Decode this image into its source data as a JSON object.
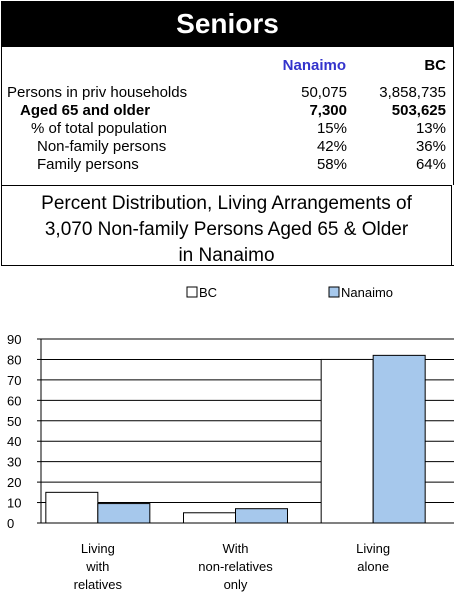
{
  "header": {
    "title": "Seniors"
  },
  "stats": {
    "columns": [
      "Nanaimo",
      "BC"
    ],
    "rows": [
      {
        "label": "Persons in priv households",
        "nanaimo": "50,075",
        "bc": "3,858,735",
        "bold": false,
        "indent": 0
      },
      {
        "label": "Aged 65 and older",
        "nanaimo": "7,300",
        "bc": "503,625",
        "bold": true,
        "indent": 1
      },
      {
        "label": "% of total population",
        "nanaimo": "15%",
        "bc": "13%",
        "bold": false,
        "indent": 2
      },
      {
        "label": "Non-family persons",
        "nanaimo": "42%",
        "bc": "36%",
        "bold": false,
        "indent": 3
      },
      {
        "label": "Family persons",
        "nanaimo": "58%",
        "bc": "64%",
        "bold": false,
        "indent": 3
      }
    ]
  },
  "chart_title_lines": [
    "Percent Distribution, Living Arrangements of",
    "3,070 Non-family Persons Aged 65 & Older",
    "in Nanaimo"
  ],
  "chart_data": {
    "type": "bar",
    "categories": [
      [
        "Living",
        "with",
        "relatives"
      ],
      [
        "With",
        "non-relatives",
        "only"
      ],
      [
        "Living",
        "alone"
      ]
    ],
    "series": [
      {
        "name": "BC",
        "values": [
          15,
          5,
          80
        ],
        "color": "#ffffff"
      },
      {
        "name": "Nanaimo",
        "values": [
          9.5,
          7,
          82
        ],
        "color": "#a6c8ec"
      }
    ],
    "ylim": [
      0,
      90
    ],
    "yticks": [
      0,
      10,
      20,
      30,
      40,
      50,
      60,
      70,
      80,
      90
    ],
    "grid": true,
    "legend": "top"
  }
}
